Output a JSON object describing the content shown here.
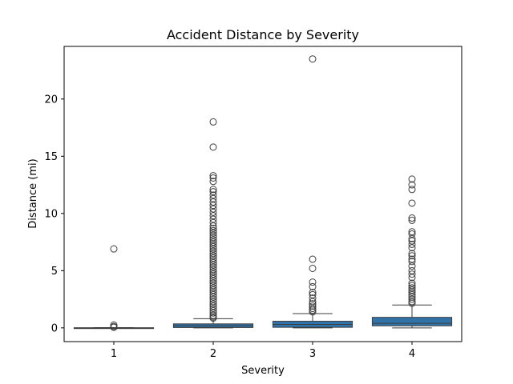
{
  "chart_data": {
    "type": "box",
    "title": "Accident Distance by Severity",
    "xlabel": "Severity",
    "ylabel": "Distance (mi)",
    "categories": [
      "1",
      "2",
      "3",
      "4"
    ],
    "ylim": [
      -1.2,
      24.6
    ],
    "yticks": [
      0,
      5,
      10,
      15,
      20
    ],
    "grid": false,
    "box_color": "#2f73a8",
    "boxes": [
      {
        "category": "1",
        "whisker_low": 0.0,
        "q1": 0.0,
        "median": 0.0,
        "q3": 0.01,
        "whisker_high": 0.02,
        "outliers": [
          6.9,
          0.25,
          0.12,
          0.05
        ]
      },
      {
        "category": "2",
        "whisker_low": 0.0,
        "q1": 0.03,
        "median": 0.18,
        "q3": 0.35,
        "whisker_high": 0.8,
        "outliers": [
          18.0,
          15.8,
          13.3,
          13.1,
          12.8,
          12.1,
          11.9,
          11.6,
          11.3,
          11.0,
          10.7,
          10.4,
          10.1,
          9.8,
          9.5,
          9.2,
          8.9,
          8.7,
          8.5,
          8.3,
          8.1,
          7.9,
          7.7,
          7.5,
          7.3,
          7.1,
          6.9,
          6.7,
          6.5,
          6.3,
          6.1,
          5.9,
          5.7,
          5.5,
          5.3,
          5.1,
          4.9,
          4.7,
          4.5,
          4.3,
          4.1,
          3.9,
          3.7,
          3.5,
          3.3,
          3.1,
          2.9,
          2.7,
          2.5,
          2.3,
          2.1,
          1.9,
          1.7,
          1.5,
          1.3,
          1.1,
          0.95,
          0.85
        ]
      },
      {
        "category": "3",
        "whisker_low": 0.0,
        "q1": 0.05,
        "median": 0.3,
        "q3": 0.58,
        "whisker_high": 1.25,
        "outliers": [
          23.5,
          6.0,
          5.2,
          4.0,
          3.6,
          3.1,
          2.9,
          2.6,
          2.3,
          2.1,
          1.9,
          1.7,
          1.55,
          1.4
        ]
      },
      {
        "category": "4",
        "whisker_low": 0.0,
        "q1": 0.18,
        "median": 0.4,
        "q3": 0.92,
        "whisker_high": 2.0,
        "outliers": [
          13.0,
          12.5,
          12.1,
          10.9,
          9.6,
          9.4,
          8.4,
          8.2,
          7.8,
          7.6,
          7.3,
          7.0,
          6.5,
          6.3,
          6.0,
          5.8,
          5.4,
          5.0,
          4.7,
          4.4,
          3.9,
          3.7,
          3.5,
          3.3,
          3.1,
          2.9,
          2.7,
          2.5,
          2.3,
          2.15
        ]
      }
    ]
  }
}
